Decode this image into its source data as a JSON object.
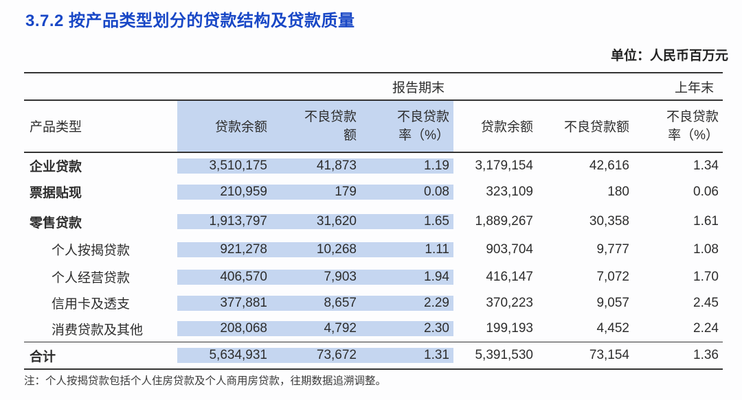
{
  "title": "3.7.2  按产品类型划分的贷款结构及贷款质量",
  "unit_label": "单位：人民币百万元",
  "table": {
    "period_headers": {
      "reporting": "报告期末",
      "previous": "上年末"
    },
    "column_headers": {
      "product_type": "产品类型",
      "reporting_balance": "贷款余额",
      "reporting_npl_amount": "不良贷款\n额",
      "reporting_npl_ratio": "不良贷款\n率（%）",
      "previous_balance": "贷款余额",
      "previous_npl_amount": "不良贷款额",
      "previous_npl_ratio": "不良贷款\n率（%）"
    },
    "rows": [
      {
        "label": "企业贷款",
        "reporting": {
          "balance": "3,510,175",
          "npl_amount": "41,873",
          "npl_ratio": "1.19"
        },
        "previous": {
          "balance": "3,179,154",
          "npl_amount": "42,616",
          "npl_ratio": "1.34"
        }
      },
      {
        "label": "票据贴现",
        "reporting": {
          "balance": "210,959",
          "npl_amount": "179",
          "npl_ratio": "0.08"
        },
        "previous": {
          "balance": "323,109",
          "npl_amount": "180",
          "npl_ratio": "0.06"
        }
      },
      {
        "label": "零售贷款",
        "reporting": {
          "balance": "1,913,797",
          "npl_amount": "31,620",
          "npl_ratio": "1.65"
        },
        "previous": {
          "balance": "1,889,267",
          "npl_amount": "30,358",
          "npl_ratio": "1.61"
        }
      },
      {
        "label": "个人按揭贷款",
        "reporting": {
          "balance": "921,278",
          "npl_amount": "10,268",
          "npl_ratio": "1.11"
        },
        "previous": {
          "balance": "903,704",
          "npl_amount": "9,777",
          "npl_ratio": "1.08"
        }
      },
      {
        "label": "个人经营贷款",
        "reporting": {
          "balance": "406,570",
          "npl_amount": "7,903",
          "npl_ratio": "1.94"
        },
        "previous": {
          "balance": "416,147",
          "npl_amount": "7,072",
          "npl_ratio": "1.70"
        }
      },
      {
        "label": "信用卡及透支",
        "reporting": {
          "balance": "377,881",
          "npl_amount": "8,657",
          "npl_ratio": "2.29"
        },
        "previous": {
          "balance": "370,223",
          "npl_amount": "9,057",
          "npl_ratio": "2.45"
        }
      },
      {
        "label": "消费贷款及其他",
        "reporting": {
          "balance": "208,068",
          "npl_amount": "4,792",
          "npl_ratio": "2.30"
        },
        "previous": {
          "balance": "199,193",
          "npl_amount": "4,452",
          "npl_ratio": "2.24"
        }
      }
    ],
    "total": {
      "label": "合计",
      "reporting": {
        "balance": "5,634,931",
        "npl_amount": "73,672",
        "npl_ratio": "1.31"
      },
      "previous": {
        "balance": "5,391,530",
        "npl_amount": "73,154",
        "npl_ratio": "1.36"
      }
    }
  },
  "note": "注：个人按揭贷款包括个人住房贷款及个人商用房贷款，往期数据追溯调整。",
  "colors": {
    "title_blue": "#1847c6",
    "highlight_blue": "#c5d6f0",
    "line_color": "#333333"
  }
}
